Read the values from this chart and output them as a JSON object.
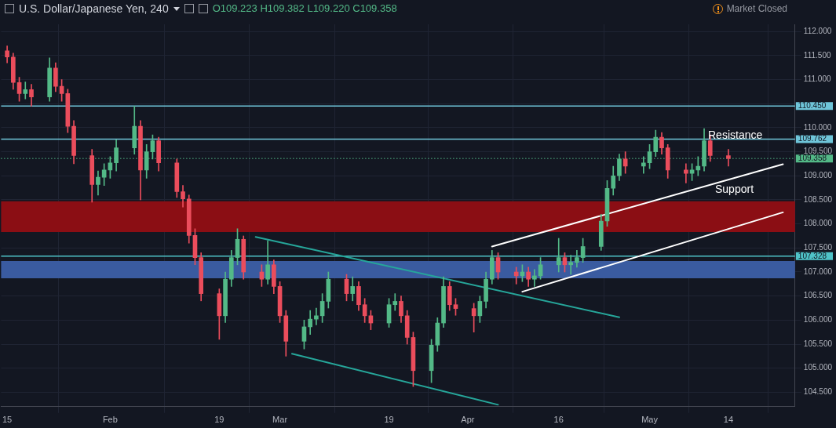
{
  "chart_data": {
    "type": "candlestick",
    "title": "U.S. Dollar/Japanese Yen, 240",
    "subtitle": "O109.223  H109.382  L109.220  C109.358",
    "x": [
      "--01-15",
      "--01-16",
      "--01-17",
      "--01-18",
      "--01-19",
      "--01-22",
      "--01-23",
      "--01-24",
      "--01-25",
      "--01-26",
      "--01-29",
      "--01-30",
      "--01-31",
      "--02-01",
      "--02-02",
      "--02-05",
      "--02-06",
      "--02-07",
      "--02-08",
      "--02-09",
      "--02-12",
      "--02-13",
      "--02-14",
      "--02-15",
      "--02-16",
      "--02-19",
      "--02-20",
      "--02-21",
      "--02-22",
      "--02-23",
      "--02-26",
      "--02-27",
      "--02-28",
      "--03-01",
      "--03-02",
      "--03-05",
      "--03-06",
      "--03-07",
      "--03-08",
      "--03-09",
      "--03-12",
      "--03-13",
      "--03-14",
      "--03-15",
      "--03-16",
      "--03-19",
      "--03-20",
      "--03-21",
      "--03-22",
      "--03-23",
      "--03-26",
      "--03-27",
      "--03-28",
      "--03-29",
      "--03-30",
      "--04-02",
      "--04-03",
      "--04-04",
      "--04-05",
      "--04-06",
      "--04-09",
      "--04-10",
      "--04-11",
      "--04-12",
      "--04-13",
      "--04-16",
      "--04-17",
      "--04-18",
      "--04-19",
      "--04-20",
      "--04-23",
      "--04-24",
      "--04-25",
      "--04-26",
      "--04-27",
      "--04-30",
      "--05-01",
      "--05-02",
      "--05-03",
      "--05-04",
      "--05-07",
      "--05-08",
      "--05-09",
      "--05-10",
      "--05-11",
      "--05-14"
    ],
    "ohlc": [
      [
        111.6,
        111.7,
        111.35,
        111.47
      ],
      [
        111.47,
        111.55,
        110.8,
        110.94
      ],
      [
        110.94,
        111.05,
        110.55,
        110.71
      ],
      [
        110.71,
        110.95,
        110.6,
        110.79
      ],
      [
        110.79,
        110.9,
        110.45,
        110.64
      ],
      [
        110.64,
        111.45,
        110.55,
        111.24
      ],
      [
        111.24,
        111.35,
        110.75,
        110.86
      ],
      [
        110.86,
        111.0,
        110.55,
        110.71
      ],
      [
        110.71,
        110.8,
        109.9,
        110.03
      ],
      [
        110.03,
        110.15,
        109.25,
        109.42
      ],
      [
        109.42,
        109.55,
        108.45,
        108.82
      ],
      [
        108.82,
        109.1,
        108.6,
        108.97
      ],
      [
        108.97,
        109.25,
        108.8,
        109.12
      ],
      [
        109.12,
        109.4,
        108.95,
        109.27
      ],
      [
        109.27,
        109.75,
        109.1,
        109.58
      ],
      [
        109.58,
        110.45,
        109.45,
        110.03
      ],
      [
        110.03,
        110.15,
        108.5,
        109.12
      ],
      [
        109.12,
        109.65,
        108.95,
        109.5
      ],
      [
        109.5,
        109.85,
        109.35,
        109.73
      ],
      [
        109.73,
        109.8,
        109.1,
        109.27
      ],
      [
        109.27,
        109.35,
        108.55,
        108.67
      ],
      [
        108.67,
        108.8,
        108.35,
        108.52
      ],
      [
        108.52,
        108.6,
        107.6,
        107.76
      ],
      [
        107.76,
        107.9,
        107.15,
        107.3
      ],
      [
        107.3,
        107.4,
        106.4,
        106.55
      ],
      [
        106.55,
        106.65,
        105.6,
        106.09
      ],
      [
        106.09,
        107.0,
        105.95,
        106.85
      ],
      [
        106.85,
        107.45,
        106.7,
        107.3
      ],
      [
        107.3,
        107.9,
        107.15,
        107.68
      ],
      [
        107.68,
        107.75,
        106.85,
        107.0
      ],
      [
        107.0,
        107.15,
        106.7,
        106.85
      ],
      [
        106.85,
        107.65,
        106.75,
        107.15
      ],
      [
        107.15,
        107.25,
        106.55,
        106.7
      ],
      [
        106.7,
        106.8,
        105.95,
        106.09
      ],
      [
        106.09,
        106.2,
        105.25,
        105.56
      ],
      [
        105.56,
        106.0,
        105.4,
        105.86
      ],
      [
        105.86,
        106.2,
        105.7,
        106.02
      ],
      [
        106.02,
        106.25,
        105.9,
        106.09
      ],
      [
        106.09,
        106.55,
        105.95,
        106.39
      ],
      [
        106.39,
        107.0,
        106.25,
        106.85
      ],
      [
        106.85,
        106.95,
        106.4,
        106.55
      ],
      [
        106.55,
        106.9,
        106.4,
        106.7
      ],
      [
        106.7,
        106.8,
        106.2,
        106.32
      ],
      [
        106.32,
        106.45,
        105.95,
        106.09
      ],
      [
        106.09,
        106.2,
        105.8,
        105.94
      ],
      [
        105.94,
        106.45,
        105.85,
        106.32
      ],
      [
        106.32,
        106.55,
        106.2,
        106.39
      ],
      [
        106.39,
        106.5,
        105.95,
        106.09
      ],
      [
        106.09,
        106.2,
        105.5,
        105.64
      ],
      [
        105.64,
        105.75,
        104.62,
        104.95
      ],
      [
        104.95,
        105.6,
        104.7,
        105.48
      ],
      [
        105.48,
        106.05,
        105.35,
        105.94
      ],
      [
        105.94,
        106.9,
        105.85,
        106.7
      ],
      [
        106.7,
        106.8,
        106.2,
        106.32
      ],
      [
        106.32,
        106.45,
        106.1,
        106.24
      ],
      [
        106.24,
        106.35,
        105.75,
        106.09
      ],
      [
        106.09,
        106.5,
        105.95,
        106.39
      ],
      [
        106.39,
        107.0,
        106.25,
        106.85
      ],
      [
        106.85,
        107.45,
        106.75,
        107.3
      ],
      [
        107.3,
        107.4,
        106.85,
        107.0
      ],
      [
        107.0,
        107.1,
        106.75,
        106.92
      ],
      [
        106.92,
        107.15,
        106.8,
        107.0
      ],
      [
        107.0,
        107.1,
        106.7,
        106.85
      ],
      [
        106.85,
        107.05,
        106.7,
        106.92
      ],
      [
        106.92,
        107.3,
        106.85,
        107.15
      ],
      [
        107.15,
        107.7,
        107.0,
        107.3
      ],
      [
        107.3,
        107.4,
        107.0,
        107.15
      ],
      [
        107.15,
        107.35,
        106.95,
        107.2
      ],
      [
        107.2,
        107.45,
        107.1,
        107.3
      ],
      [
        107.3,
        107.7,
        107.2,
        107.53
      ],
      [
        107.53,
        108.2,
        107.45,
        108.06
      ],
      [
        108.06,
        108.9,
        107.95,
        108.74
      ],
      [
        108.74,
        109.2,
        108.6,
        109.0
      ],
      [
        109.0,
        109.45,
        108.9,
        109.35
      ],
      [
        109.35,
        109.5,
        109.05,
        109.2
      ],
      [
        109.2,
        109.4,
        109.05,
        109.27
      ],
      [
        109.27,
        109.65,
        109.15,
        109.5
      ],
      [
        109.5,
        109.95,
        109.4,
        109.8
      ],
      [
        109.8,
        109.9,
        109.45,
        109.58
      ],
      [
        109.58,
        109.65,
        108.95,
        109.12
      ],
      [
        109.12,
        109.25,
        108.85,
        109.05
      ],
      [
        109.05,
        109.25,
        108.9,
        109.12
      ],
      [
        109.12,
        109.4,
        109.0,
        109.2
      ],
      [
        109.2,
        109.98,
        109.1,
        109.73
      ],
      [
        109.73,
        109.85,
        109.3,
        109.42
      ],
      [
        109.42,
        109.55,
        109.2,
        109.36
      ]
    ],
    "colors": [
      "#eb4d5c",
      "#eb4d5c",
      "#eb4d5c",
      "#53b987",
      "#eb4d5c",
      "#53b987",
      "#eb4d5c",
      "#eb4d5c",
      "#eb4d5c",
      "#eb4d5c",
      "#eb4d5c",
      "#53b987",
      "#53b987",
      "#53b987",
      "#53b987",
      "#53b987",
      "#eb4d5c",
      "#53b987",
      "#53b987",
      "#eb4d5c",
      "#eb4d5c",
      "#eb4d5c",
      "#eb4d5c",
      "#eb4d5c",
      "#eb4d5c",
      "#eb4d5c",
      "#53b987",
      "#53b987",
      "#53b987",
      "#eb4d5c",
      "#eb4d5c",
      "#53b987",
      "#eb4d5c",
      "#eb4d5c",
      "#eb4d5c",
      "#53b987",
      "#53b987",
      "#53b987",
      "#53b987",
      "#53b987",
      "#eb4d5c",
      "#53b987",
      "#eb4d5c",
      "#eb4d5c",
      "#eb4d5c",
      "#53b987",
      "#53b987",
      "#eb4d5c",
      "#eb4d5c",
      "#eb4d5c",
      "#53b987",
      "#53b987",
      "#53b987",
      "#eb4d5c",
      "#eb4d5c",
      "#eb4d5c",
      "#53b987",
      "#53b987",
      "#53b987",
      "#eb4d5c",
      "#eb4d5c",
      "#53b987",
      "#eb4d5c",
      "#53b987",
      "#53b987",
      "#53b987",
      "#eb4d5c",
      "#53b987",
      "#53b987",
      "#53b987",
      "#53b987",
      "#53b987",
      "#53b987",
      "#53b987",
      "#eb4d5c",
      "#53b987",
      "#53b987",
      "#53b987",
      "#eb4d5c",
      "#eb4d5c",
      "#eb4d5c",
      "#53b987",
      "#53b987",
      "#53b987",
      "#eb4d5c",
      "#eb4d5c"
    ],
    "series": [
      {
        "type": "line",
        "color": "#ffffff",
        "x": [
          "--04-05",
          "--05-23"
        ],
        "values": [
          107.53,
          109.24
        ]
      },
      {
        "type": "line",
        "color": "#ffffff",
        "x": [
          "--04-10",
          "--05-23"
        ],
        "values": [
          106.59,
          108.24
        ]
      },
      {
        "type": "line",
        "color": "#26a69a",
        "x": [
          "--02-25",
          "--04-26"
        ],
        "values": [
          107.73,
          106.06
        ]
      },
      {
        "type": "line",
        "color": "#26a69a",
        "x": [
          "--03-03",
          "--04-06"
        ],
        "values": [
          105.3,
          104.24
        ]
      }
    ],
    "xlim": [
      "--01-14",
      "--05-25"
    ],
    "xticks": [
      {
        "value": "--01-15",
        "label": "15"
      },
      {
        "value": "--02-01",
        "label": "Feb"
      },
      {
        "value": "--02-19",
        "label": "19"
      },
      {
        "value": "--03-01",
        "label": "Mar"
      },
      {
        "value": "--03-19",
        "label": "19"
      },
      {
        "value": "--04-01",
        "label": "Apr"
      },
      {
        "value": "--04-16",
        "label": "16"
      },
      {
        "value": "--05-01",
        "label": "May"
      },
      {
        "value": "--05-14",
        "label": "14"
      }
    ],
    "ylim": [
      104.2,
      112.15
    ],
    "yticks": [
      {
        "value": 104.5,
        "label": "104.500"
      },
      {
        "value": 105,
        "label": "105.000"
      },
      {
        "value": 105.5,
        "label": "105.500"
      },
      {
        "value": 106,
        "label": "106.000"
      },
      {
        "value": 106.5,
        "label": "106.500"
      },
      {
        "value": 107,
        "label": "107.000"
      },
      {
        "value": 107.5,
        "label": "107.500"
      },
      {
        "value": 108,
        "label": "108.000"
      },
      {
        "value": 108.5,
        "label": "108.500"
      },
      {
        "value": 109,
        "label": "109.000"
      },
      {
        "value": 109.5,
        "label": "109.500"
      },
      {
        "value": 110,
        "label": "110.000"
      },
      {
        "value": 110.5,
        "label": null
      },
      {
        "value": 111,
        "label": "111.000"
      },
      {
        "value": 111.5,
        "label": "111.500"
      },
      {
        "value": 112,
        "label": "112.000"
      }
    ],
    "grid": true,
    "ref_lines": [
      {
        "axis": "y",
        "value": 110.45,
        "label": "110.450",
        "color": "#6fc5d9",
        "line_style": "solid"
      },
      {
        "axis": "y",
        "value": 109.762,
        "label": "109.762",
        "color": "#6fc5d9",
        "line_style": "solid"
      },
      {
        "axis": "y",
        "value": 109.358,
        "label": "109.358",
        "color": "#53b987",
        "line_style": "dotted"
      },
      {
        "axis": "y",
        "value": 107.328,
        "label": "107.328",
        "color": "#4fc3c8",
        "line_style": "solid"
      }
    ],
    "bands": [
      {
        "axis": "y",
        "from": 107.83,
        "to": 108.47,
        "color": "#8b0e14"
      },
      {
        "axis": "y",
        "from": 106.87,
        "to": 107.23,
        "color": "#3a5ba0"
      }
    ],
    "annotations": [
      "Market Closed",
      "Resistance",
      "Support"
    ]
  }
}
